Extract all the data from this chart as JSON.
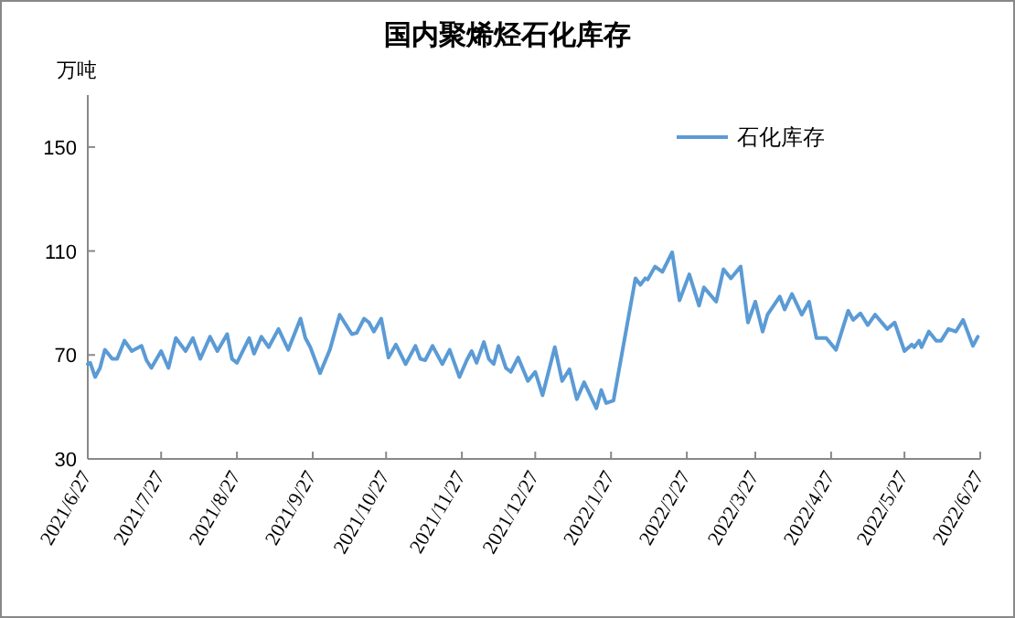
{
  "chart_data": {
    "type": "line",
    "title": "国内聚烯烃石化库存",
    "ylabel": "万吨",
    "legend": "top right",
    "grid": false,
    "marker": "none",
    "line_style": "solid",
    "xlim": [
      "2021-06-27",
      "2022-06-27"
    ],
    "xticks": [
      {
        "value": "2021-06-27",
        "label": "2021/6/27"
      },
      {
        "value": "2021-07-27",
        "label": "2021/7/27"
      },
      {
        "value": "2021-08-27",
        "label": "2021/8/27"
      },
      {
        "value": "2021-09-27",
        "label": "2021/9/27"
      },
      {
        "value": "2021-10-27",
        "label": "2021/10/27"
      },
      {
        "value": "2021-11-27",
        "label": "2021/11/27"
      },
      {
        "value": "2021-12-27",
        "label": "2021/12/27"
      },
      {
        "value": "2022-01-27",
        "label": "2022/1/27"
      },
      {
        "value": "2022-02-27",
        "label": "2022/2/27"
      },
      {
        "value": "2022-03-27",
        "label": "2022/3/27"
      },
      {
        "value": "2022-04-27",
        "label": "2022/4/27"
      },
      {
        "value": "2022-05-27",
        "label": "2022/5/27"
      },
      {
        "value": "2022-06-27",
        "label": "2022/6/27"
      }
    ],
    "ylim": [
      30,
      170
    ],
    "yticks": [
      30,
      70,
      110,
      150
    ],
    "x": [
      "2021-06-27",
      "2021-06-28",
      "2021-06-30",
      "2021-07-02",
      "2021-07-04",
      "2021-07-07",
      "2021-07-09",
      "2021-07-12",
      "2021-07-15",
      "2021-07-19",
      "2021-07-21",
      "2021-07-23",
      "2021-07-27",
      "2021-07-30",
      "2021-08-02",
      "2021-08-06",
      "2021-08-09",
      "2021-08-12",
      "2021-08-16",
      "2021-08-19",
      "2021-08-23",
      "2021-08-25",
      "2021-08-27",
      "2021-09-01",
      "2021-09-03",
      "2021-09-06",
      "2021-09-09",
      "2021-09-13",
      "2021-09-17",
      "2021-09-22",
      "2021-09-24",
      "2021-09-26",
      "2021-09-30",
      "2021-10-04",
      "2021-10-08",
      "2021-10-10",
      "2021-10-13",
      "2021-10-15",
      "2021-10-18",
      "2021-10-20",
      "2021-10-22",
      "2021-10-25",
      "2021-10-28",
      "2021-10-31",
      "2021-11-04",
      "2021-11-08",
      "2021-11-10",
      "2021-11-12",
      "2021-11-15",
      "2021-11-19",
      "2021-11-22",
      "2021-11-26",
      "2021-11-29",
      "2021-12-01",
      "2021-12-03",
      "2021-12-06",
      "2021-12-08",
      "2021-12-10",
      "2021-12-12",
      "2021-12-15",
      "2021-12-17",
      "2021-12-20",
      "2021-12-24",
      "2021-12-27",
      "2021-12-30",
      "2022-01-04",
      "2022-01-07",
      "2022-01-10",
      "2022-01-13",
      "2022-01-16",
      "2022-01-21",
      "2022-01-23",
      "2022-01-25",
      "2022-01-28",
      "2022-02-06",
      "2022-02-08",
      "2022-02-10",
      "2022-02-11",
      "2022-02-14",
      "2022-02-17",
      "2022-02-21",
      "2022-02-24",
      "2022-02-28",
      "2022-03-04",
      "2022-03-06",
      "2022-03-11",
      "2022-03-14",
      "2022-03-17",
      "2022-03-21",
      "2022-03-24",
      "2022-03-27",
      "2022-03-30",
      "2022-04-01",
      "2022-04-06",
      "2022-04-08",
      "2022-04-11",
      "2022-04-15",
      "2022-04-18",
      "2022-04-21",
      "2022-04-25",
      "2022-04-29",
      "2022-05-04",
      "2022-05-06",
      "2022-05-09",
      "2022-05-12",
      "2022-05-15",
      "2022-05-20",
      "2022-05-23",
      "2022-05-27",
      "2022-05-30",
      "2022-05-31",
      "2022-06-02",
      "2022-06-03",
      "2022-06-06",
      "2022-06-09",
      "2022-06-11",
      "2022-06-14",
      "2022-06-17",
      "2022-06-20",
      "2022-06-24",
      "2022-06-26"
    ],
    "series": [
      {
        "name": "石化库存",
        "color": "#5b9bd5",
        "values": [
          66.5,
          67,
          61.5,
          65,
          72,
          68.5,
          68.5,
          75.5,
          71.5,
          73.5,
          68,
          65,
          71.5,
          65,
          76.5,
          71.5,
          76.5,
          68.5,
          77,
          71.5,
          78,
          68.5,
          67,
          76.5,
          70.5,
          77,
          73,
          80,
          72,
          84,
          76.5,
          73,
          63,
          72,
          85.5,
          82.5,
          78,
          78.5,
          84,
          82.5,
          79,
          84,
          69,
          74,
          66.5,
          73.5,
          68.5,
          68,
          73.5,
          66.5,
          72,
          61.5,
          68,
          71.5,
          67,
          75,
          68.5,
          66.5,
          73.5,
          65,
          63.5,
          69,
          60,
          63.5,
          54.5,
          73,
          60,
          64.5,
          53,
          59.5,
          49.5,
          56.5,
          51.5,
          52.5,
          99.5,
          97,
          99.5,
          99,
          104,
          102,
          109.5,
          91,
          101,
          89,
          96,
          90.5,
          103,
          99.5,
          104,
          82.5,
          90.5,
          79,
          85.5,
          92.5,
          87.5,
          93.5,
          85.5,
          90.5,
          76.5,
          76.5,
          72,
          87,
          83.5,
          86,
          81.5,
          85.5,
          80,
          82.5,
          71.5,
          74,
          73,
          75.5,
          73,
          79,
          75.5,
          75.5,
          80,
          79,
          83.5,
          73.5,
          77
        ]
      }
    ]
  }
}
